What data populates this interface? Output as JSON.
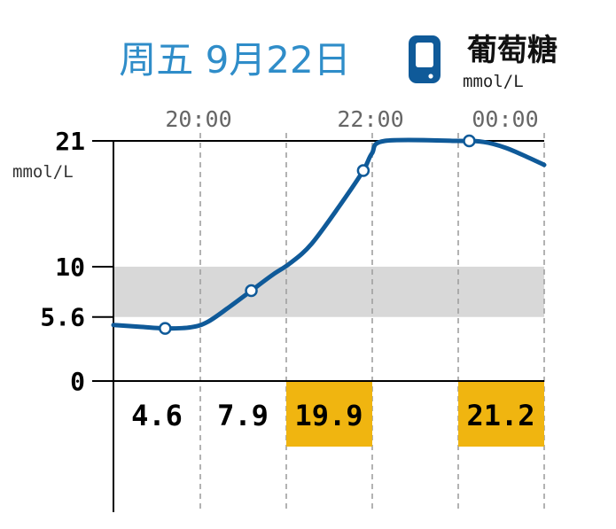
{
  "header": {
    "date": "周五 9月22日",
    "meter_label": "葡萄糖",
    "meter_unit": "mmol/L"
  },
  "colors": {
    "title": "#2f8dc9",
    "line": "#0f5a99",
    "target_band": "#d8d8d8",
    "high_cell": "#f0b510",
    "grid": "#a0a0a0",
    "meter_icon": "#0f5a99"
  },
  "chart_data": {
    "type": "line",
    "x_tick_labels": [
      "20:00",
      "22:00",
      "00:00"
    ],
    "y_tick_labels": [
      "21",
      "10",
      "5.6",
      "0"
    ],
    "ylabel": "mmol/L",
    "ylim": [
      0,
      21
    ],
    "target_range": [
      5.6,
      10
    ],
    "xlim_hours": [
      19.0,
      24.0
    ],
    "series": [
      {
        "values": [
          [
            19.0,
            4.9
          ],
          [
            19.3,
            4.75
          ],
          [
            19.6,
            4.6
          ],
          [
            19.9,
            4.7
          ],
          [
            20.1,
            5.2
          ],
          [
            20.35,
            6.5
          ],
          [
            20.6,
            7.9
          ],
          [
            20.85,
            9.3
          ],
          [
            21.05,
            10.3
          ],
          [
            21.3,
            12.0
          ],
          [
            21.65,
            15.6
          ],
          [
            21.9,
            18.4
          ],
          [
            22.0,
            19.9
          ],
          [
            22.15,
            21.0
          ],
          [
            23.0,
            21.0
          ],
          [
            23.3,
            20.9
          ],
          [
            23.55,
            20.4
          ],
          [
            23.8,
            19.6
          ],
          [
            24.0,
            18.9
          ]
        ],
        "markers": [
          [
            19.6,
            4.6
          ],
          [
            20.6,
            7.9
          ],
          [
            21.9,
            18.4
          ],
          [
            23.13,
            21.0
          ]
        ]
      }
    ],
    "table": {
      "values": [
        "4.6",
        "7.9",
        "19.9",
        "",
        "21.2"
      ],
      "highlighted": [
        false,
        false,
        true,
        false,
        true
      ]
    }
  }
}
